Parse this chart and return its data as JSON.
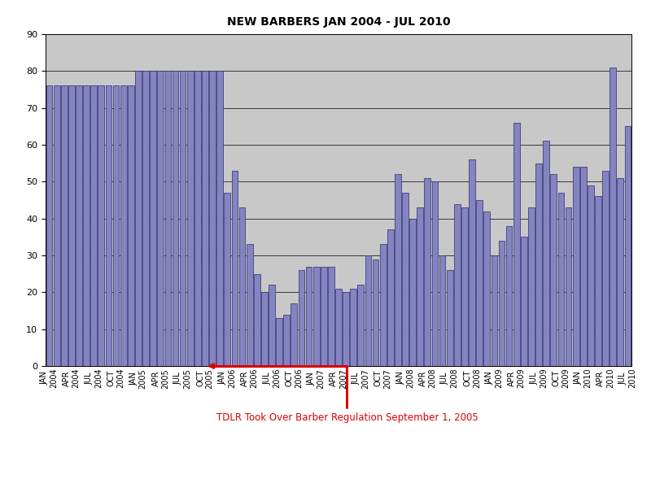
{
  "title": "NEW BARBERS JAN 2004 - JUL 2010",
  "monthly_values": [
    76,
    76,
    76,
    76,
    76,
    76,
    76,
    76,
    76,
    76,
    76,
    76,
    80,
    80,
    80,
    80,
    80,
    80,
    80,
    80,
    80,
    80,
    80,
    80,
    47,
    53,
    43,
    33,
    25,
    20,
    22,
    13,
    14,
    17,
    26,
    27,
    27,
    27,
    27,
    21,
    20,
    21,
    22,
    30,
    29,
    33,
    37,
    52,
    47,
    40,
    43,
    51,
    50,
    30,
    26,
    44,
    43,
    56,
    45,
    42,
    30,
    34,
    38,
    66,
    35,
    43,
    55,
    61,
    52,
    47,
    43,
    54,
    54,
    49,
    46,
    53,
    81,
    51,
    65
  ],
  "ylim": [
    0,
    90
  ],
  "yticks": [
    0,
    10,
    20,
    30,
    40,
    50,
    60,
    70,
    80,
    90
  ],
  "bar_color": "#8484C0",
  "bar_edge_color": "#404080",
  "bg_color": "#C8C8C8",
  "annotation_text": "TDLR Took Over Barber Regulation September 1, 2005",
  "annotation_color": "#DD0000",
  "tdlr_bar_index": 21,
  "title_fontsize": 10,
  "tick_fontsize": 7,
  "ytick_fontsize": 8
}
